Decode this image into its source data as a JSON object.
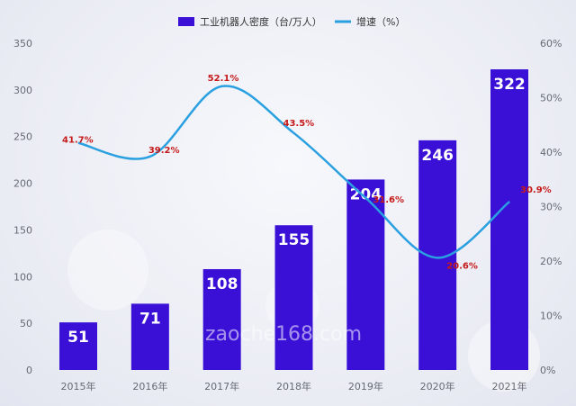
{
  "chart_data": {
    "type": "bar",
    "categories": [
      "2015年",
      "2016年",
      "2017年",
      "2018年",
      "2019年",
      "2020年",
      "2021年"
    ],
    "series": [
      {
        "name": "工业机器人密度（台/万人）",
        "type": "bar",
        "axis": "left",
        "values": [
          51,
          71,
          108,
          155,
          204,
          246,
          322
        ],
        "labels": [
          "51",
          "71",
          "108",
          "155",
          "204",
          "246",
          "322"
        ],
        "color": "#3a0fd6"
      },
      {
        "name": "增速（%）",
        "type": "line",
        "axis": "right",
        "values": [
          41.7,
          39.2,
          52.1,
          43.5,
          31.6,
          20.6,
          30.9
        ],
        "labels": [
          "41.7%",
          "39.2%",
          "52.1%",
          "43.5%",
          "31.6%",
          "20.6%",
          "30.9%"
        ],
        "color": "#2aa0e0",
        "label_color": "#c51a1a"
      }
    ],
    "y_left": {
      "lim": [
        0,
        350
      ],
      "ticks": [
        "0",
        "50",
        "100",
        "150",
        "200",
        "250",
        "300",
        "350"
      ]
    },
    "y_right": {
      "lim": [
        0,
        60
      ],
      "ticks": [
        "0%",
        "10%",
        "20%",
        "30%",
        "40%",
        "50%",
        "60%"
      ]
    },
    "legend": "top-center",
    "grid": false
  },
  "watermark": "zaoche168.com"
}
